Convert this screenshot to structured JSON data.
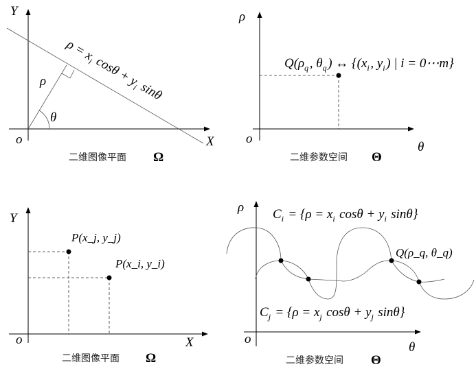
{
  "panels": {
    "image_plane_line": {
      "y_axis": "Y",
      "x_axis": "X",
      "origin": "o",
      "rho": "ρ",
      "theta": "θ",
      "line_equation": "ρ = x_i cosθ + y_i sinθ",
      "caption": "二维图像平面",
      "caption_symbol": "Ω"
    },
    "parameter_space_point": {
      "y_axis": "ρ",
      "x_axis": "θ",
      "origin": "o",
      "point_label": "Q(ρ_q, θ_q) ↔ {(x_i, y_i) | i = 0⋯m}",
      "caption": "二维参数空间",
      "caption_symbol": "Θ"
    },
    "image_plane_points": {
      "y_axis": "Y",
      "x_axis": "X",
      "origin": "o",
      "point_j": "P(x_j, y_j)",
      "point_i": "P(x_i, y_i)",
      "caption": "二维图像平面",
      "caption_symbol": "Ω"
    },
    "parameter_space_curves": {
      "y_axis": "ρ",
      "x_axis": "θ",
      "origin": "o",
      "curve_i": "C_i = {ρ = x_i cosθ + y_i sinθ}",
      "curve_j": "C_j = {ρ = x_j cosθ + y_j sinθ}",
      "point_label": "Q(ρ_q, θ_q)",
      "caption": "二维参数空间",
      "caption_symbol": "Θ"
    }
  }
}
